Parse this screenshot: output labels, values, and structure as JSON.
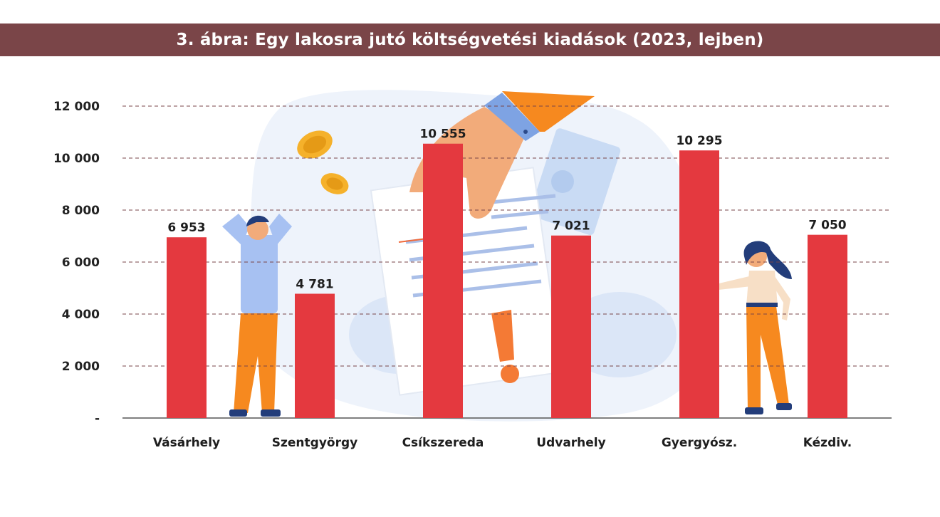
{
  "title": "3. ábra: Egy lakosra jutó költségvetési kiadások (2023, lejben)",
  "colors": {
    "title_bar": "#7a4548",
    "bar": "#e4393f",
    "grid": "#7a4548",
    "axis": "#555555"
  },
  "chart_data": {
    "type": "bar",
    "title": "3. ábra: Egy lakosra jutó költségvetési kiadások (2023, lejben)",
    "categories": [
      "Vásárhely",
      "Szentgyörgy",
      "Csíkszereda",
      "Udvarhely",
      "Gyergyósz.",
      "Kézdiv."
    ],
    "values": [
      6953,
      4781,
      10555,
      7021,
      10295,
      7050
    ],
    "value_labels": [
      "6 953",
      "4 781",
      "10 555",
      "7 021",
      "10 295",
      "7 050"
    ],
    "yticks": [
      0,
      2000,
      4000,
      6000,
      8000,
      10000,
      12000
    ],
    "ytick_labels": [
      "-",
      "2 000",
      "4 000",
      "6 000",
      "8 000",
      "10 000",
      "12 000"
    ],
    "ylim": [
      0,
      12000
    ],
    "xlabel": "",
    "ylabel": "",
    "grid": true,
    "legend": "none"
  }
}
